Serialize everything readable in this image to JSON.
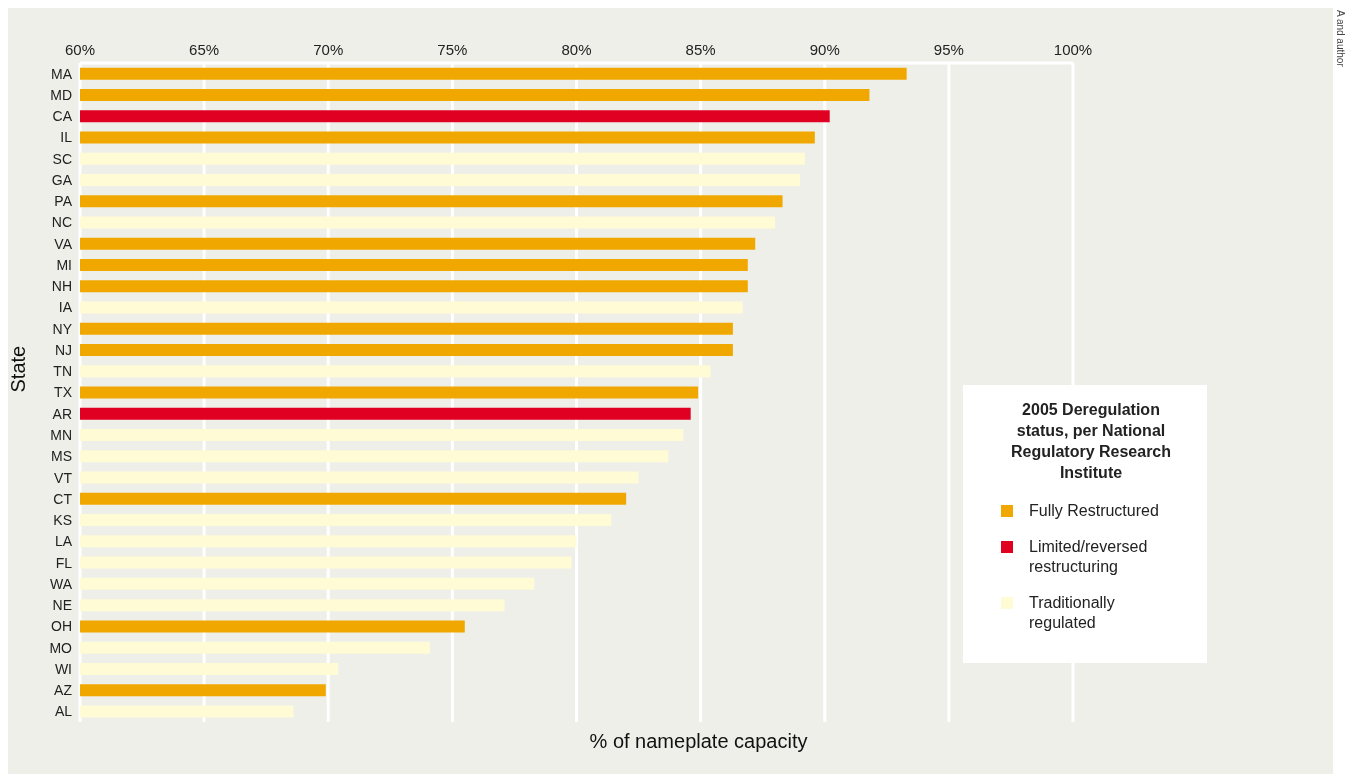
{
  "chart_data": {
    "type": "bar",
    "orientation": "horizontal",
    "stacked": true,
    "categories": [
      "MA",
      "MD",
      "CA",
      "IL",
      "SC",
      "GA",
      "PA",
      "NC",
      "VA",
      "MI",
      "NH",
      "IA",
      "NY",
      "NJ",
      "TN",
      "TX",
      "AR",
      "MN",
      "MS",
      "VT",
      "CT",
      "KS",
      "LA",
      "FL",
      "WA",
      "NE",
      "OH",
      "MO",
      "WI",
      "AZ",
      "AL"
    ],
    "series": [
      {
        "name": "Fully Restructured",
        "color": "#f0a800",
        "values": [
          93.3,
          91.8,
          null,
          89.6,
          null,
          null,
          88.3,
          null,
          87.2,
          86.9,
          86.9,
          null,
          86.3,
          86.3,
          null,
          84.9,
          null,
          null,
          null,
          null,
          82.0,
          null,
          null,
          null,
          null,
          null,
          75.5,
          null,
          null,
          69.9,
          null
        ]
      },
      {
        "name": "Traditionally regulated",
        "color": "#fffbd5",
        "values": [
          null,
          null,
          null,
          null,
          89.2,
          89.0,
          null,
          88.0,
          null,
          null,
          null,
          86.7,
          null,
          null,
          85.4,
          null,
          null,
          84.3,
          83.7,
          82.5,
          null,
          81.4,
          80.0,
          79.8,
          78.3,
          77.1,
          null,
          74.1,
          70.4,
          null,
          68.6
        ]
      },
      {
        "name": "Limited/reversed restructuring",
        "color": "#e00022",
        "values": [
          null,
          null,
          90.2,
          null,
          null,
          null,
          null,
          null,
          null,
          null,
          null,
          null,
          null,
          null,
          null,
          null,
          84.6,
          null,
          null,
          null,
          null,
          null,
          null,
          null,
          null,
          null,
          null,
          null,
          null,
          null,
          null
        ]
      }
    ],
    "xlim": [
      60,
      100
    ],
    "xticks": [
      {
        "value": 60,
        "label": "60%"
      },
      {
        "value": 65,
        "label": "65%"
      },
      {
        "value": 70,
        "label": "70%"
      },
      {
        "value": 75,
        "label": "75%"
      },
      {
        "value": 80,
        "label": "80%"
      },
      {
        "value": 85,
        "label": "85%"
      },
      {
        "value": 90,
        "label": "90%"
      },
      {
        "value": 95,
        "label": "95%"
      },
      {
        "value": 100,
        "label": "100%"
      }
    ],
    "xlabel": "% of nameplate capacity",
    "ylabel": "State",
    "legend_title": "2005 Deregulation status, per National Regulatory Research Institute",
    "legend": "right",
    "grid": "x",
    "annotations": [
      "A and author"
    ]
  }
}
